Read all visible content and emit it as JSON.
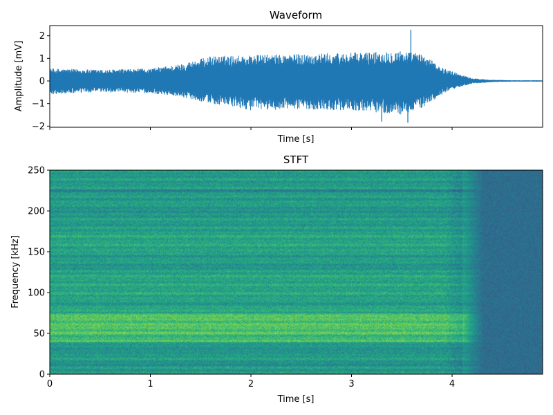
{
  "chart_data": [
    {
      "type": "line",
      "title": "Waveform",
      "xlabel": "Time [s]",
      "ylabel": "Amplitude [mV]",
      "xlim": [
        0,
        4.9
      ],
      "ylim": [
        -2.05,
        2.45
      ],
      "xticks": [
        0,
        1,
        2,
        3,
        4
      ],
      "xtick_labels_shown": false,
      "yticks": [
        -2,
        -1,
        0,
        1,
        2
      ],
      "ytick_labels": [
        "−2",
        "−1",
        "0",
        "1",
        "2"
      ],
      "grid": false,
      "color": "#1f77b4",
      "envelope": {
        "t": [
          0.0,
          0.5,
          1.0,
          1.3,
          1.6,
          2.0,
          2.5,
          3.0,
          3.5,
          3.7,
          3.9,
          4.05,
          4.2,
          4.4,
          4.6,
          4.9
        ],
        "pos": [
          0.55,
          0.5,
          0.55,
          0.75,
          1.1,
          1.15,
          1.2,
          1.25,
          1.35,
          1.2,
          0.6,
          0.35,
          0.12,
          0.05,
          0.03,
          0.03
        ],
        "neg": [
          -0.6,
          -0.5,
          -0.55,
          -0.7,
          -1.0,
          -1.3,
          -1.25,
          -1.3,
          -1.5,
          -1.2,
          -0.6,
          -0.3,
          -0.12,
          -0.05,
          -0.03,
          -0.03
        ]
      },
      "spikes": [
        {
          "t": 3.59,
          "value": 2.27
        },
        {
          "t": 3.56,
          "value": -1.85
        },
        {
          "t": 3.3,
          "value": -1.8
        }
      ]
    },
    {
      "type": "heatmap",
      "title": "STFT",
      "xlabel": "Time [s]",
      "ylabel": "Frequency [kHz]",
      "xlim": [
        0,
        4.9
      ],
      "ylim": [
        0,
        250
      ],
      "xticks": [
        0,
        1,
        2,
        3,
        4
      ],
      "xtick_labels": [
        "0",
        "1",
        "2",
        "3",
        "4"
      ],
      "yticks": [
        0,
        50,
        100,
        150,
        200,
        250
      ],
      "ytick_labels": [
        "0",
        "50",
        "100",
        "150",
        "200",
        "250"
      ],
      "colormap": "viridis",
      "signal_end_time": 4.1,
      "bright_band_khz": [
        40,
        75
      ],
      "dark_bands_khz": [
        12,
        30,
        47,
        88,
        130,
        200,
        225
      ],
      "grid": false
    }
  ]
}
